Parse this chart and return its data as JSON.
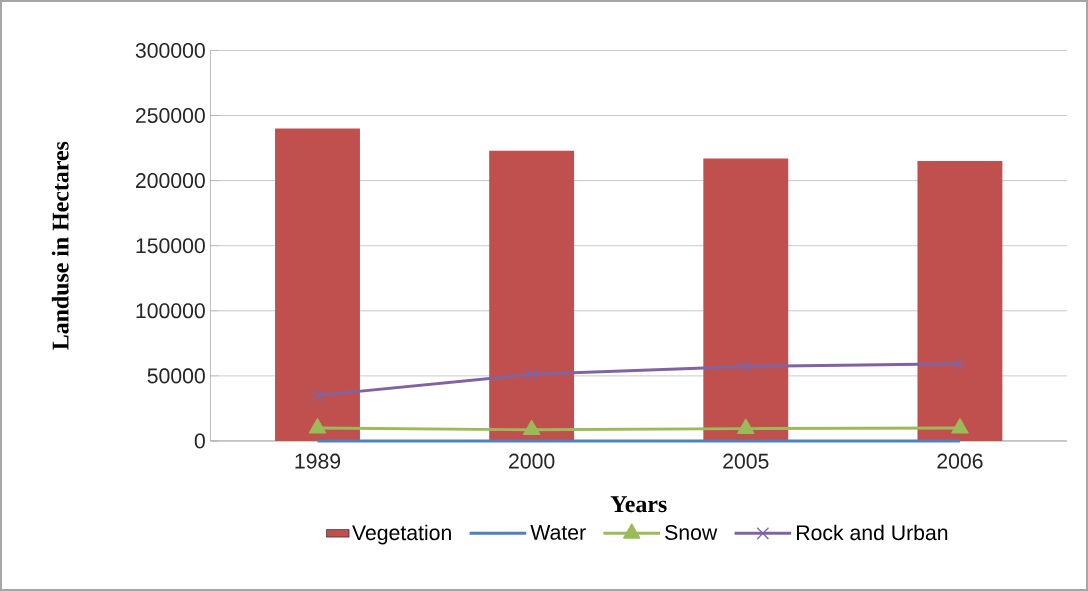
{
  "chart_data": {
    "type": "bar",
    "xlabel": "Years",
    "ylabel": "Landuse in Hectares",
    "categories": [
      "1989",
      "2000",
      "2005",
      "2006"
    ],
    "series": [
      {
        "name": "Vegetation",
        "color": "#c0504d",
        "values": [
          240000,
          223000,
          217000,
          215000
        ]
      },
      {
        "name": "Water",
        "type": "line",
        "color": "#4f81bd",
        "marker": "none",
        "values": [
          0,
          0,
          0,
          0
        ]
      },
      {
        "name": "Snow",
        "type": "line",
        "color": "#9bbb59",
        "marker": "triangle",
        "values": [
          9900,
          8600,
          9500,
          9900
        ]
      },
      {
        "name": "Rock and Urban",
        "type": "line",
        "color": "#8064a2",
        "marker": "cross",
        "values": [
          35000,
          51200,
          57200,
          59300
        ]
      }
    ],
    "ylim": [
      0,
      300000
    ],
    "yticks": [
      0,
      50000,
      100000,
      150000,
      200000,
      250000,
      300000
    ],
    "grid": "y",
    "legend": "bottom"
  }
}
